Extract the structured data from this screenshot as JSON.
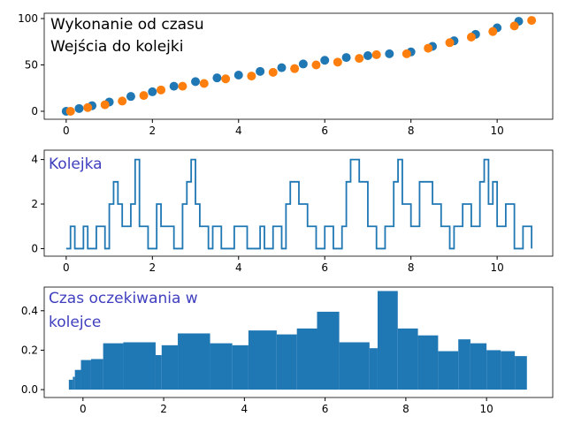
{
  "chart_data": [
    {
      "type": "scatter",
      "series": [
        {
          "name": "Wejścia do kolejki",
          "color": "#1f77b4",
          "x": [
            0,
            0.3,
            0.6,
            1.0,
            1.5,
            2.0,
            2.5,
            3.0,
            3.5,
            4.0,
            4.5,
            5.0,
            5.5,
            6.0,
            6.5,
            7.0,
            7.5,
            8.0,
            8.5,
            9.0,
            9.5,
            10.0,
            10.5
          ],
          "values": [
            0,
            3,
            6,
            10,
            16,
            21,
            27,
            32,
            36,
            39,
            43,
            47,
            51,
            55,
            58,
            60,
            62,
            64,
            70,
            76,
            83,
            90,
            97
          ]
        },
        {
          "name": "Wykonanie od czasu",
          "color": "#ff7f0e",
          "x": [
            0.1,
            0.5,
            0.9,
            1.3,
            1.8,
            2.2,
            2.7,
            3.2,
            3.7,
            4.3,
            4.8,
            5.3,
            5.8,
            6.3,
            6.8,
            7.2,
            7.9,
            8.4,
            8.9,
            9.4,
            9.9,
            10.4,
            10.8
          ],
          "values": [
            0,
            4,
            7,
            11,
            17,
            23,
            27,
            30,
            35,
            38,
            42,
            46,
            50,
            53,
            57,
            61,
            62,
            68,
            74,
            80,
            86,
            92,
            98
          ]
        }
      ],
      "xlim": [
        -0.51,
        11.29
      ],
      "xticks": [
        0,
        2,
        4,
        6,
        8,
        10
      ],
      "ylim": [
        -8.6,
        105.7
      ],
      "yticks": [
        0,
        50,
        100
      ]
    },
    {
      "type": "step",
      "label": "Kolejka",
      "color": "#1f77b4",
      "x": [
        0,
        0.1,
        0.2,
        0.4,
        0.5,
        0.7,
        0.9,
        1.0,
        1.1,
        1.2,
        1.3,
        1.5,
        1.6,
        1.7,
        1.9,
        2.1,
        2.2,
        2.5,
        2.7,
        2.8,
        2.9,
        3.0,
        3.1,
        3.3,
        3.4,
        3.6,
        3.9,
        4.2,
        4.5,
        4.6,
        4.8,
        5.0,
        5.1,
        5.2,
        5.4,
        5.6,
        5.8,
        6.0,
        6.2,
        6.4,
        6.5,
        6.6,
        6.8,
        7.0,
        7.2,
        7.4,
        7.6,
        7.7,
        7.8,
        8.0,
        8.2,
        8.5,
        8.7,
        8.9,
        9.0,
        9.2,
        9.4,
        9.6,
        9.7,
        9.8,
        9.9,
        10.0,
        10.2,
        10.4,
        10.6,
        10.8
      ],
      "values": [
        0,
        1,
        0,
        1,
        0,
        1,
        0,
        2,
        3,
        2,
        1,
        2,
        4,
        1,
        0,
        2,
        1,
        0,
        2,
        3,
        4,
        2,
        1,
        0,
        1,
        0,
        1,
        0,
        1,
        0,
        1,
        0,
        2,
        3,
        2,
        1,
        0,
        1,
        0,
        1,
        3,
        4,
        3,
        1,
        0,
        1,
        3,
        4,
        2,
        1,
        3,
        2,
        1,
        0,
        1,
        2,
        1,
        3,
        4,
        2,
        3,
        1,
        2,
        0,
        1,
        0
      ],
      "xlim": [
        -0.51,
        11.29
      ],
      "xticks": [
        0,
        2,
        4,
        6,
        8,
        10
      ],
      "ylim": [
        -0.34,
        4.42
      ],
      "yticks": [
        0,
        2,
        4
      ]
    },
    {
      "type": "histogram",
      "label": "Czas oczekiwania w kolejce",
      "color": "#1f77b4",
      "bins": [
        -0.35,
        -0.25,
        -0.2,
        -0.05,
        0.2,
        0.5,
        1.0,
        1.8,
        1.95,
        2.35,
        3.15,
        3.7,
        4.1,
        4.8,
        5.3,
        5.8,
        6.35,
        7.1,
        7.3,
        7.8,
        8.3,
        8.8,
        9.3,
        9.6,
        10.0,
        10.35,
        10.7,
        11.0
      ],
      "values": [
        0.05,
        0.065,
        0.1,
        0.15,
        0.155,
        0.235,
        0.24,
        0.175,
        0.225,
        0.285,
        0.235,
        0.225,
        0.3,
        0.28,
        0.31,
        0.395,
        0.24,
        0.21,
        0.5,
        0.31,
        0.275,
        0.195,
        0.255,
        0.235,
        0.2,
        0.195,
        0.17
      ],
      "xlim": [
        -0.96,
        11.64
      ],
      "xticks": [
        0,
        2,
        4,
        6,
        8,
        10
      ],
      "ylim": [
        -0.04,
        0.52
      ],
      "yticks": [
        0.0,
        0.2,
        0.4
      ]
    }
  ]
}
